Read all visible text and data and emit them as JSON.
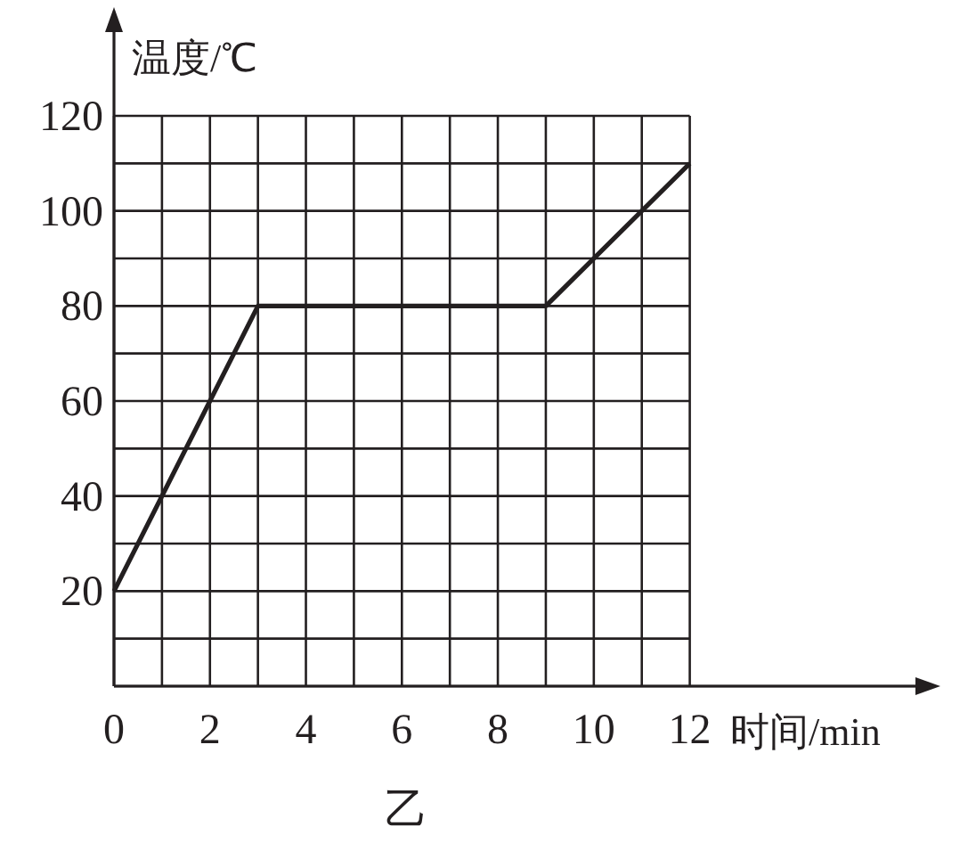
{
  "chart_data": {
    "type": "line",
    "xlabel": "时间/min",
    "ylabel": "温度/℃",
    "annotations": [
      "乙"
    ],
    "x": [
      0,
      3,
      9,
      12
    ],
    "series": [
      {
        "color": "#231f20",
        "values": [
          20,
          80,
          80,
          110
        ]
      }
    ],
    "xlim": [
      0,
      17
    ],
    "ylim": [
      0,
      120
    ],
    "xticks": [
      0,
      {
        "value": 1,
        "label": null
      },
      2,
      {
        "value": 3,
        "label": null
      },
      4,
      {
        "value": 5,
        "label": null
      },
      6,
      {
        "value": 7,
        "label": null
      },
      8,
      {
        "value": 9,
        "label": null
      },
      10,
      {
        "value": 11,
        "label": null
      },
      12
    ],
    "yticks": [
      {
        "value": 10,
        "label": null
      },
      20,
      {
        "value": 30,
        "label": null
      },
      40,
      {
        "value": 50,
        "label": null
      },
      60,
      {
        "value": 70,
        "label": null
      },
      80,
      {
        "value": 90,
        "label": null
      },
      100,
      {
        "value": 110,
        "label": null
      },
      120
    ],
    "grid": true,
    "line_style": "solid"
  }
}
